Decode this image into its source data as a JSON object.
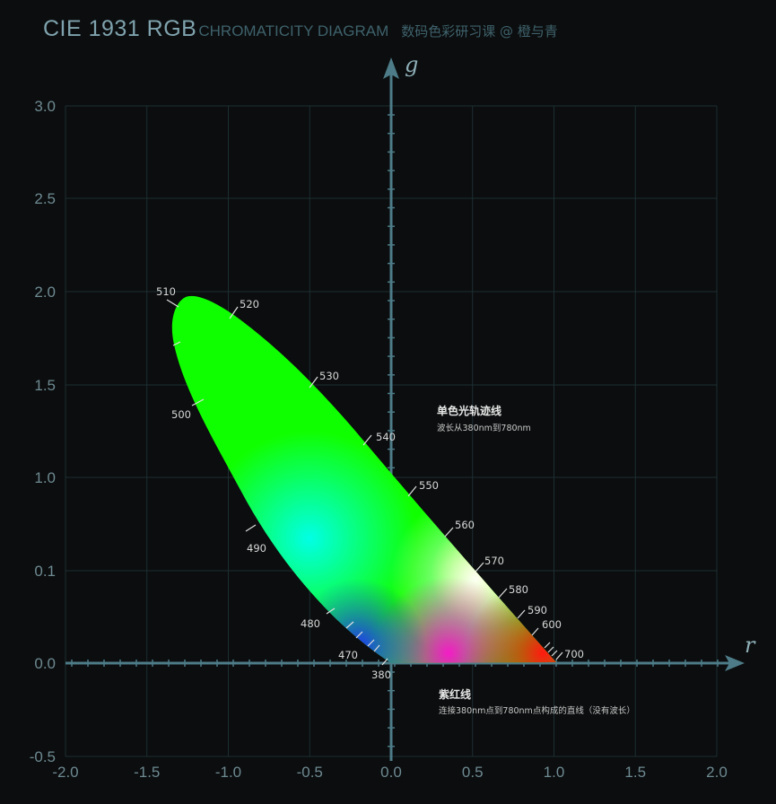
{
  "title": {
    "main": "CIE 1931 RGB",
    "sub": "CHROMATICITY DIAGRAM",
    "credit": "数码色彩研习课 @ 橙与青"
  },
  "axes": {
    "x_letter": "r",
    "y_letter": "g",
    "x_ticks": [
      "-2.0",
      "-1.5",
      "-1.0",
      "-0.5",
      "0.0",
      "0.5",
      "1.0",
      "1.5",
      "2.0"
    ],
    "y_ticks": [
      "3.0",
      "2.5",
      "2.0",
      "1.5",
      "1.0",
      "0.1",
      "0.0",
      "-0.5"
    ]
  },
  "colors": {
    "background": "#0b0d0e",
    "grid": "#1d2e33",
    "axis": "#4d7c88"
  },
  "spectral_labels": [
    {
      "text": "510",
      "wl": 510
    },
    {
      "text": "520",
      "wl": 520
    },
    {
      "text": "530",
      "wl": 530
    },
    {
      "text": "540",
      "wl": 540
    },
    {
      "text": "550",
      "wl": 550
    },
    {
      "text": "560",
      "wl": 560
    },
    {
      "text": "570",
      "wl": 570
    },
    {
      "text": "580",
      "wl": 580
    },
    {
      "text": "590",
      "wl": 590
    },
    {
      "text": "600",
      "wl": 600
    },
    {
      "text": "700",
      "wl": 700
    },
    {
      "text": "500",
      "wl": 500
    },
    {
      "text": "490",
      "wl": 490
    },
    {
      "text": "480",
      "wl": 480
    },
    {
      "text": "470",
      "wl": 470
    },
    {
      "text": "380",
      "wl": 380
    }
  ],
  "annotations": {
    "spectral_locus_title": "单色光轨迹线",
    "spectral_locus_sub": "波长从380nm到780nm",
    "purple_line_title": "紫红线",
    "purple_line_sub": "连接380nm点到780nm点构成的直线（没有波长）"
  }
}
